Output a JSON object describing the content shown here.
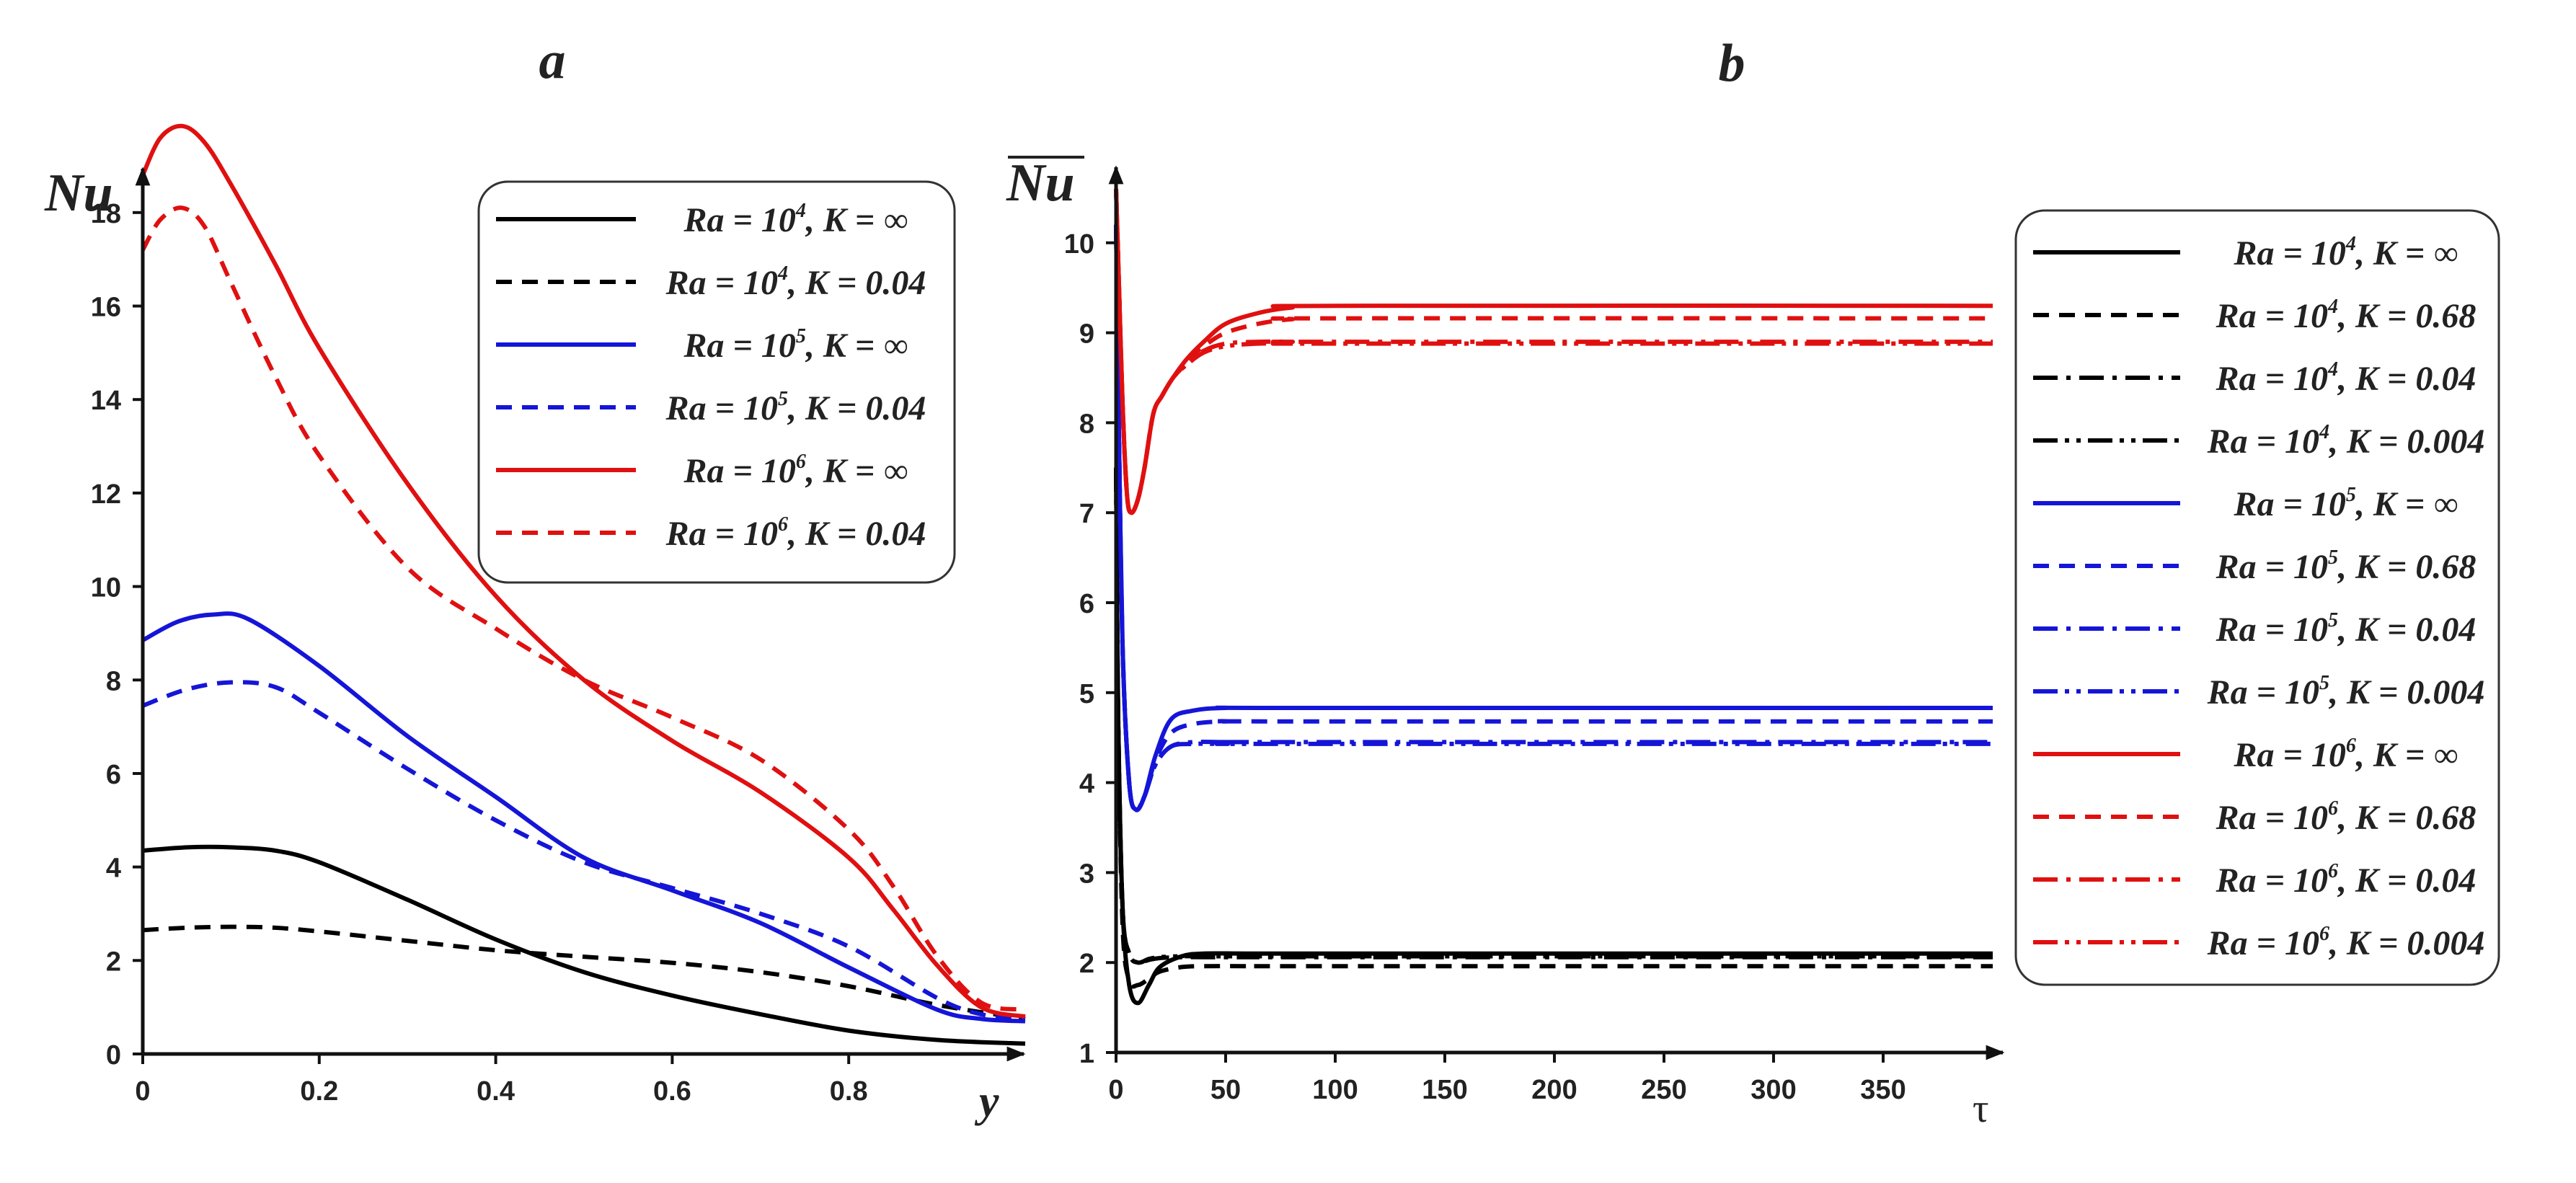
{
  "chart_data": [
    {
      "type": "line",
      "panel_label": "a",
      "xlabel": "y",
      "ylabel": "Nu",
      "xlim": [
        0,
        1.0
      ],
      "ylim": [
        0,
        19
      ],
      "xticks": [
        "0",
        "0.2",
        "0.4",
        "0.6",
        "0.8"
      ],
      "yticks": [
        "0",
        "2",
        "4",
        "6",
        "8",
        "10",
        "12",
        "14",
        "16",
        "18"
      ],
      "legend_position": "top-right",
      "series": [
        {
          "name": "Ra = 10^4, K = ∞",
          "legend": {
            "pre": "Ra = 10",
            "sup": "4",
            "post": ", K = ∞"
          },
          "color": "#000000",
          "dash": "solid",
          "x": [
            0,
            0.05,
            0.1,
            0.15,
            0.2,
            0.3,
            0.4,
            0.5,
            0.6,
            0.7,
            0.8,
            0.9,
            1.0
          ],
          "y": [
            4.35,
            4.42,
            4.42,
            4.35,
            4.1,
            3.3,
            2.45,
            1.75,
            1.25,
            0.85,
            0.5,
            0.3,
            0.22
          ]
        },
        {
          "name": "Ra = 10^4, K = 0.04",
          "legend": {
            "pre": "Ra = 10",
            "sup": "4",
            "post": ", K = 0.04"
          },
          "color": "#000000",
          "dash": "dashed",
          "x": [
            0,
            0.05,
            0.1,
            0.15,
            0.2,
            0.3,
            0.4,
            0.5,
            0.6,
            0.7,
            0.8,
            0.9,
            1.0
          ],
          "y": [
            2.65,
            2.7,
            2.72,
            2.7,
            2.62,
            2.42,
            2.22,
            2.08,
            1.95,
            1.75,
            1.45,
            1.05,
            0.75
          ]
        },
        {
          "name": "Ra = 10^5, K = ∞",
          "legend": {
            "pre": "Ra = 10",
            "sup": "5",
            "post": ", K = ∞"
          },
          "color": "#1515d8",
          "dash": "solid",
          "x": [
            0,
            0.04,
            0.08,
            0.12,
            0.2,
            0.3,
            0.4,
            0.5,
            0.6,
            0.7,
            0.8,
            0.9,
            0.95,
            1.0
          ],
          "y": [
            8.85,
            9.25,
            9.4,
            9.3,
            8.3,
            6.8,
            5.5,
            4.2,
            3.5,
            2.8,
            1.85,
            0.95,
            0.75,
            0.7
          ]
        },
        {
          "name": "Ra = 10^5, K = 0.04",
          "legend": {
            "pre": "Ra = 10",
            "sup": "5",
            "post": ", K = 0.04"
          },
          "color": "#1515d8",
          "dash": "dashed",
          "x": [
            0,
            0.05,
            0.1,
            0.15,
            0.2,
            0.3,
            0.4,
            0.5,
            0.6,
            0.7,
            0.8,
            0.9,
            0.95,
            1.0
          ],
          "y": [
            7.45,
            7.8,
            7.95,
            7.85,
            7.3,
            6.1,
            5.0,
            4.1,
            3.55,
            3.0,
            2.3,
            1.2,
            0.85,
            0.75
          ]
        },
        {
          "name": "Ra = 10^6, K = ∞",
          "legend": {
            "pre": "Ra = 10",
            "sup": "6",
            "post": ", K = ∞"
          },
          "color": "#e01010",
          "dash": "solid",
          "x": [
            0,
            0.02,
            0.045,
            0.07,
            0.1,
            0.15,
            0.2,
            0.3,
            0.4,
            0.5,
            0.6,
            0.7,
            0.8,
            0.85,
            0.9,
            0.95,
            1.0
          ],
          "y": [
            18.8,
            19.6,
            19.85,
            19.5,
            18.6,
            16.9,
            15.1,
            12.2,
            9.8,
            8.0,
            6.7,
            5.6,
            4.2,
            3.1,
            1.9,
            1.0,
            0.8
          ]
        },
        {
          "name": "Ra = 10^6, K = 0.04",
          "legend": {
            "pre": "Ra = 10",
            "sup": "6",
            "post": ", K = 0.04"
          },
          "color": "#e01010",
          "dash": "dashed",
          "x": [
            0,
            0.02,
            0.045,
            0.07,
            0.1,
            0.15,
            0.2,
            0.3,
            0.4,
            0.5,
            0.6,
            0.7,
            0.8,
            0.85,
            0.9,
            0.95,
            1.0
          ],
          "y": [
            17.2,
            17.85,
            18.1,
            17.7,
            16.5,
            14.5,
            12.8,
            10.4,
            9.1,
            8.0,
            7.2,
            6.3,
            4.8,
            3.6,
            2.1,
            1.1,
            0.95
          ]
        }
      ]
    },
    {
      "type": "line",
      "panel_label": "b",
      "xlabel": "τ",
      "ylabel": "Nu",
      "ylabel_overline": true,
      "xlim": [
        0,
        400
      ],
      "ylim": [
        1,
        11
      ],
      "xticks": [
        "0",
        "50",
        "100",
        "150",
        "200",
        "250",
        "300",
        "350"
      ],
      "yticks": [
        "1",
        "2",
        "3",
        "4",
        "5",
        "6",
        "7",
        "8",
        "9",
        "10"
      ],
      "legend_position": "right",
      "series": [
        {
          "name": "Ra = 10^4, K = ∞",
          "legend": {
            "pre": "Ra = 10",
            "sup": "4",
            "post": ", K = ∞"
          },
          "color": "#000000",
          "dash": "solid",
          "x": [
            0,
            1,
            3,
            6,
            10,
            15,
            20,
            30,
            40,
            60,
            100,
            400
          ],
          "y": [
            7.5,
            4.7,
            2.6,
            1.75,
            1.55,
            1.75,
            1.95,
            2.07,
            2.1,
            2.1,
            2.1,
            2.1
          ]
        },
        {
          "name": "Ra = 10^4, K = 0.68",
          "legend": {
            "pre": "Ra = 10",
            "sup": "4",
            "post": ", K = 0.68"
          },
          "color": "#000000",
          "dash": "dashed",
          "x": [
            0,
            1,
            3,
            6,
            10,
            15,
            20,
            30,
            40,
            60,
            100,
            400
          ],
          "y": [
            7.5,
            4.7,
            2.4,
            1.8,
            1.75,
            1.82,
            1.9,
            1.95,
            1.96,
            1.96,
            1.96,
            1.96
          ]
        },
        {
          "name": "Ra = 10^4, K = 0.04",
          "legend": {
            "pre": "Ra = 10",
            "sup": "4",
            "post": ", K = 0.04"
          },
          "color": "#000000",
          "dash": "dashdot",
          "x": [
            0,
            1,
            3,
            6,
            10,
            15,
            20,
            30,
            40,
            60,
            100,
            400
          ],
          "y": [
            7.5,
            4.7,
            2.6,
            2.1,
            2.0,
            2.03,
            2.05,
            2.06,
            2.06,
            2.06,
            2.06,
            2.06
          ]
        },
        {
          "name": "Ra = 10^4, K = 0.004",
          "legend": {
            "pre": "Ra = 10",
            "sup": "4",
            "post": ", K = 0.004"
          },
          "color": "#000000",
          "dash": "dashdotdot",
          "x": [
            0,
            1,
            3,
            6,
            10,
            15,
            20,
            30,
            40,
            60,
            100,
            400
          ],
          "y": [
            7.5,
            4.7,
            2.6,
            2.1,
            2.0,
            2.04,
            2.06,
            2.07,
            2.07,
            2.07,
            2.07,
            2.07
          ]
        },
        {
          "name": "Ra = 10^5, K = ∞",
          "legend": {
            "pre": "Ra = 10",
            "sup": "5",
            "post": ", K = ∞"
          },
          "color": "#1515d8",
          "dash": "solid",
          "x": [
            0,
            1,
            3,
            6,
            9,
            13,
            18,
            25,
            35,
            50,
            80,
            400
          ],
          "y": [
            10.2,
            8.4,
            5.5,
            4.0,
            3.7,
            3.85,
            4.3,
            4.7,
            4.8,
            4.83,
            4.83,
            4.83
          ]
        },
        {
          "name": "Ra = 10^5, K = 0.68",
          "legend": {
            "pre": "Ra = 10",
            "sup": "5",
            "post": ", K = 0.68"
          },
          "color": "#1515d8",
          "dash": "dashed",
          "x": [
            0,
            1,
            3,
            6,
            9,
            13,
            18,
            25,
            35,
            50,
            80,
            400
          ],
          "y": [
            10.2,
            8.4,
            5.5,
            4.0,
            3.7,
            3.85,
            4.25,
            4.55,
            4.65,
            4.68,
            4.68,
            4.68
          ]
        },
        {
          "name": "Ra = 10^5, K = 0.04",
          "legend": {
            "pre": "Ra = 10",
            "sup": "5",
            "post": ", K = 0.04"
          },
          "color": "#1515d8",
          "dash": "dashdot",
          "x": [
            0,
            1,
            3,
            6,
            9,
            13,
            18,
            25,
            35,
            50,
            80,
            400
          ],
          "y": [
            10.2,
            8.4,
            5.5,
            4.0,
            3.7,
            3.85,
            4.2,
            4.4,
            4.45,
            4.45,
            4.45,
            4.45
          ]
        },
        {
          "name": "Ra = 10^5, K = 0.004",
          "legend": {
            "pre": "Ra = 10",
            "sup": "5",
            "post": ", K = 0.004"
          },
          "color": "#1515d8",
          "dash": "dashdotdot",
          "x": [
            0,
            1,
            3,
            6,
            9,
            13,
            18,
            25,
            35,
            50,
            80,
            400
          ],
          "y": [
            10.2,
            8.4,
            5.5,
            4.0,
            3.7,
            3.85,
            4.2,
            4.4,
            4.43,
            4.43,
            4.43,
            4.43
          ]
        },
        {
          "name": "Ra = 10^6, K = ∞",
          "legend": {
            "pre": "Ra = 10",
            "sup": "6",
            "post": ", K = ∞"
          },
          "color": "#e01010",
          "dash": "solid",
          "x": [
            0,
            1,
            3,
            5,
            7,
            10,
            13,
            17,
            21,
            26,
            32,
            40,
            50,
            65,
            80,
            100,
            400
          ],
          "y": [
            10.6,
            9.8,
            8.2,
            7.2,
            7.0,
            7.15,
            7.5,
            8.1,
            8.3,
            8.5,
            8.7,
            8.9,
            9.1,
            9.22,
            9.28,
            9.3,
            9.3
          ]
        },
        {
          "name": "Ra = 10^6, K = 0.68",
          "legend": {
            "pre": "Ra = 10",
            "sup": "6",
            "post": ", K = 0.68"
          },
          "color": "#e01010",
          "dash": "dashed",
          "x": [
            0,
            1,
            3,
            5,
            7,
            10,
            13,
            17,
            21,
            26,
            32,
            40,
            50,
            65,
            80,
            100,
            400
          ],
          "y": [
            10.6,
            9.8,
            8.2,
            7.2,
            7.0,
            7.15,
            7.5,
            8.1,
            8.3,
            8.5,
            8.68,
            8.85,
            9.0,
            9.1,
            9.15,
            9.16,
            9.16
          ]
        },
        {
          "name": "Ra = 10^6, K = 0.04",
          "legend": {
            "pre": "Ra = 10",
            "sup": "6",
            "post": ", K = 0.04"
          },
          "color": "#e01010",
          "dash": "dashdot",
          "x": [
            0,
            1,
            3,
            5,
            7,
            10,
            13,
            17,
            21,
            26,
            32,
            40,
            50,
            65,
            80,
            100,
            400
          ],
          "y": [
            10.6,
            9.8,
            8.2,
            7.2,
            7.0,
            7.15,
            7.5,
            8.1,
            8.3,
            8.5,
            8.65,
            8.8,
            8.88,
            8.9,
            8.9,
            8.9,
            8.9
          ]
        },
        {
          "name": "Ra = 10^6, K = 0.004",
          "legend": {
            "pre": "Ra = 10",
            "sup": "6",
            "post": ", K = 0.004"
          },
          "color": "#e01010",
          "dash": "dashdotdot",
          "x": [
            0,
            1,
            3,
            5,
            7,
            10,
            13,
            17,
            21,
            26,
            32,
            40,
            50,
            65,
            80,
            100,
            400
          ],
          "y": [
            10.6,
            9.8,
            8.2,
            7.2,
            7.0,
            7.15,
            7.5,
            8.1,
            8.3,
            8.5,
            8.64,
            8.78,
            8.85,
            8.88,
            8.88,
            8.88,
            8.88
          ]
        }
      ]
    }
  ]
}
